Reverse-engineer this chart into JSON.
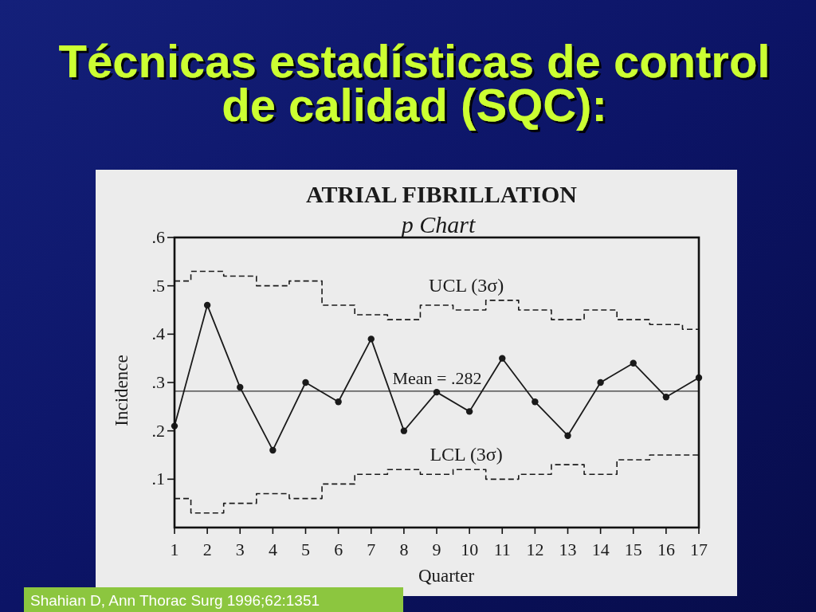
{
  "chart_data": {
    "type": "line",
    "title": "Técnicas estadísticas de control de calidad (SQC):",
    "subtitle": "ATRIAL FIBRILLATION",
    "xlabel": "Quarter",
    "ylabel": "Incidence",
    "annotations": [
      "p Chart",
      "Shahian D, Ann Thorac Surg 1996;62:1351"
    ],
    "x": [
      1,
      2,
      3,
      4,
      5,
      6,
      7,
      8,
      9,
      10,
      11,
      12,
      13,
      14,
      15,
      16,
      17
    ],
    "series": [
      {
        "color": "#1a1a1a",
        "marker": "circle",
        "values": [
          0.21,
          0.46,
          0.29,
          0.16,
          0.3,
          0.26,
          0.39,
          0.2,
          0.28,
          0.24,
          0.35,
          0.26,
          0.19,
          0.3,
          0.34,
          0.27,
          0.31
        ]
      },
      {
        "type": "step",
        "name": "UCL (3σ)",
        "color": "#1a1a1a",
        "line_style": "dashed",
        "values": [
          0.51,
          0.53,
          0.52,
          0.5,
          0.51,
          0.46,
          0.44,
          0.43,
          0.46,
          0.45,
          0.47,
          0.45,
          0.43,
          0.45,
          0.43,
          0.42,
          0.41
        ]
      },
      {
        "type": "step",
        "name": "LCL (3σ)",
        "color": "#1a1a1a",
        "line_style": "dashed",
        "values": [
          0.06,
          0.03,
          0.05,
          0.07,
          0.06,
          0.09,
          0.11,
          0.12,
          0.11,
          0.12,
          0.1,
          0.11,
          0.13,
          0.11,
          0.14,
          0.15,
          0.15
        ]
      }
    ],
    "xlim": [
      1,
      17
    ],
    "xticks": [
      1,
      2,
      3,
      4,
      5,
      6,
      7,
      8,
      9,
      10,
      11,
      12,
      13,
      14,
      15,
      16,
      17
    ],
    "ylim": [
      0,
      0.6
    ],
    "yticks": [
      {
        "value": 0.1,
        "label": ".1"
      },
      {
        "value": 0.2,
        "label": ".2"
      },
      {
        "value": 0.3,
        "label": ".3"
      },
      {
        "value": 0.4,
        "label": ".4"
      },
      {
        "value": 0.5,
        "label": ".5"
      },
      {
        "value": 0.6,
        "label": ".6"
      }
    ],
    "ref_lines": [
      {
        "axis": "y",
        "value": 0.282,
        "label": "Mean = .282",
        "color": "#333333"
      }
    ]
  }
}
